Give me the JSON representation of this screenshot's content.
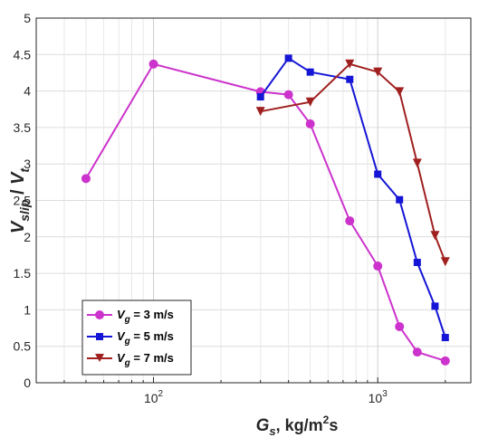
{
  "chart_data": {
    "type": "line",
    "x_scale": "log",
    "xlim": [
      30,
      2600
    ],
    "ylim": [
      0,
      5
    ],
    "y_ticks": [
      "0",
      "0.5",
      "1",
      "1.5",
      "2",
      "2.5",
      "3",
      "3.5",
      "4",
      "4.5",
      "5"
    ],
    "x_ticks": [
      {
        "base": "10",
        "exp": "2"
      },
      {
        "base": "10",
        "exp": "3"
      }
    ],
    "xlabel": {
      "main": "G",
      "sub": "s",
      "rest": ", kg/m",
      "sup": "2",
      "tail": "s"
    },
    "ylabel": {
      "v1": "V",
      "sub1": "slip",
      "sep": " / ",
      "v2": "V",
      "sub2": "t"
    },
    "grid": true,
    "legend_position": "bottom-left",
    "series": [
      {
        "legend": {
          "main": "V",
          "sub": "g",
          "rest": " = 3 m/s"
        },
        "color": "#cc33cc",
        "marker": "circle",
        "x": [
          50,
          100,
          300,
          400,
          500,
          750,
          1000,
          1250,
          1500,
          2000
        ],
        "y": [
          2.8,
          4.37,
          3.99,
          3.95,
          3.55,
          2.22,
          1.6,
          0.77,
          0.42,
          0.3
        ]
      },
      {
        "legend": {
          "main": "V",
          "sub": "g",
          "rest": " = 5 m/s"
        },
        "color": "#1515d6",
        "marker": "square",
        "x": [
          300,
          400,
          500,
          750,
          1000,
          1250,
          1500,
          1800,
          2000
        ],
        "y": [
          3.92,
          4.45,
          4.26,
          4.16,
          2.86,
          2.51,
          1.65,
          1.05,
          0.62
        ]
      },
      {
        "legend": {
          "main": "V",
          "sub": "g",
          "rest": " = 7 m/s"
        },
        "color": "#a02020",
        "marker": "triangle-down",
        "x": [
          300,
          500,
          750,
          1000,
          1250,
          1500,
          1800,
          2000
        ],
        "y": [
          3.72,
          3.85,
          4.37,
          4.26,
          3.99,
          3.01,
          2.02,
          1.66
        ]
      }
    ]
  }
}
